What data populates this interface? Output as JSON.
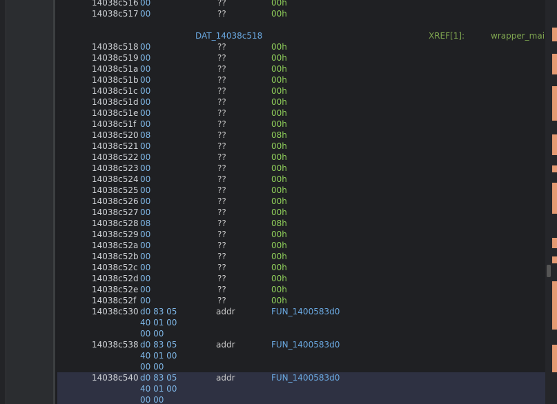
{
  "listing": {
    "top_rows": [
      {
        "address": "14038c516",
        "bytes": [
          "00"
        ],
        "mnemonic": "??",
        "operand": "00h"
      },
      {
        "address": "14038c517",
        "bytes": [
          "00"
        ],
        "mnemonic": "??",
        "operand": "00h"
      }
    ],
    "label": {
      "name": "DAT_14038c518",
      "xref": "XREF[1]:",
      "xref_target": "wrapper_mai"
    },
    "rows": [
      {
        "address": "14038c518",
        "bytes": [
          "00"
        ],
        "mnemonic": "??",
        "operand": "00h"
      },
      {
        "address": "14038c519",
        "bytes": [
          "00"
        ],
        "mnemonic": "??",
        "operand": "00h"
      },
      {
        "address": "14038c51a",
        "bytes": [
          "00"
        ],
        "mnemonic": "??",
        "operand": "00h"
      },
      {
        "address": "14038c51b",
        "bytes": [
          "00"
        ],
        "mnemonic": "??",
        "operand": "00h"
      },
      {
        "address": "14038c51c",
        "bytes": [
          "00"
        ],
        "mnemonic": "??",
        "operand": "00h"
      },
      {
        "address": "14038c51d",
        "bytes": [
          "00"
        ],
        "mnemonic": "??",
        "operand": "00h"
      },
      {
        "address": "14038c51e",
        "bytes": [
          "00"
        ],
        "mnemonic": "??",
        "operand": "00h"
      },
      {
        "address": "14038c51f",
        "bytes": [
          "00"
        ],
        "mnemonic": "??",
        "operand": "00h"
      },
      {
        "address": "14038c520",
        "bytes": [
          "08"
        ],
        "mnemonic": "??",
        "operand": "08h"
      },
      {
        "address": "14038c521",
        "bytes": [
          "00"
        ],
        "mnemonic": "??",
        "operand": "00h"
      },
      {
        "address": "14038c522",
        "bytes": [
          "00"
        ],
        "mnemonic": "??",
        "operand": "00h"
      },
      {
        "address": "14038c523",
        "bytes": [
          "00"
        ],
        "mnemonic": "??",
        "operand": "00h"
      },
      {
        "address": "14038c524",
        "bytes": [
          "00"
        ],
        "mnemonic": "??",
        "operand": "00h"
      },
      {
        "address": "14038c525",
        "bytes": [
          "00"
        ],
        "mnemonic": "??",
        "operand": "00h"
      },
      {
        "address": "14038c526",
        "bytes": [
          "00"
        ],
        "mnemonic": "??",
        "operand": "00h"
      },
      {
        "address": "14038c527",
        "bytes": [
          "00"
        ],
        "mnemonic": "??",
        "operand": "00h"
      },
      {
        "address": "14038c528",
        "bytes": [
          "08"
        ],
        "mnemonic": "??",
        "operand": "08h"
      },
      {
        "address": "14038c529",
        "bytes": [
          "00"
        ],
        "mnemonic": "??",
        "operand": "00h"
      },
      {
        "address": "14038c52a",
        "bytes": [
          "00"
        ],
        "mnemonic": "??",
        "operand": "00h"
      },
      {
        "address": "14038c52b",
        "bytes": [
          "00"
        ],
        "mnemonic": "??",
        "operand": "00h"
      },
      {
        "address": "14038c52c",
        "bytes": [
          "00"
        ],
        "mnemonic": "??",
        "operand": "00h"
      },
      {
        "address": "14038c52d",
        "bytes": [
          "00"
        ],
        "mnemonic": "??",
        "operand": "00h"
      },
      {
        "address": "14038c52e",
        "bytes": [
          "00"
        ],
        "mnemonic": "??",
        "operand": "00h"
      },
      {
        "address": "14038c52f",
        "bytes": [
          "00"
        ],
        "mnemonic": "??",
        "operand": "00h"
      },
      {
        "address": "14038c530",
        "bytes": [
          "d0 83 05",
          "40 01 00",
          "00 00"
        ],
        "mnemonic": "addr",
        "operand": "FUN_1400583d0"
      },
      {
        "address": "14038c538",
        "bytes": [
          "d0 83 05",
          "40 01 00",
          "00 00"
        ],
        "mnemonic": "addr",
        "operand": "FUN_1400583d0"
      },
      {
        "address": "14038c540",
        "bytes": [
          "d0 83 05",
          "40 01 00",
          "00 00"
        ],
        "mnemonic": "addr",
        "operand": "FUN_1400583d0"
      }
    ]
  }
}
